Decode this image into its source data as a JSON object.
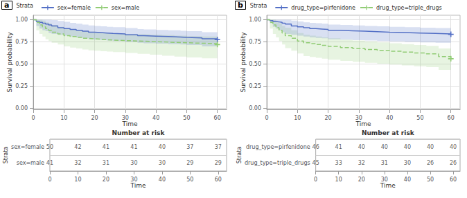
{
  "chart_data": [
    {
      "type": "step",
      "title": "a",
      "x_label": "Time",
      "y_label": "Survival probability",
      "legend_title": "Strata",
      "legend": "top",
      "grid": true,
      "xlim": [
        0,
        63
      ],
      "xticks": [
        0,
        10,
        20,
        30,
        40,
        50,
        60
      ],
      "ylim": [
        -0.01,
        1.05
      ],
      "yticks": [
        {
          "value": 0.0,
          "label": "0.00"
        },
        0.25,
        {
          "value": 0.5,
          "label": "0.50"
        },
        0.75,
        {
          "value": 1.0,
          "label": "1.00"
        }
      ],
      "series": [
        {
          "name": "sex=female",
          "line_style": "solid",
          "x": [
            0,
            1,
            2,
            3,
            4,
            5,
            6,
            8,
            10,
            12,
            14,
            16,
            18,
            20,
            22,
            24,
            26,
            30,
            34,
            36,
            40,
            44,
            48,
            50,
            55,
            60
          ],
          "values": [
            1.0,
            0.98,
            0.97,
            0.96,
            0.95,
            0.94,
            0.93,
            0.91,
            0.9,
            0.89,
            0.88,
            0.87,
            0.86,
            0.855,
            0.85,
            0.845,
            0.84,
            0.83,
            0.82,
            0.815,
            0.81,
            0.805,
            0.8,
            0.795,
            0.785,
            0.775
          ],
          "upper": [
            1.0,
            1.0,
            1.0,
            1.0,
            1.0,
            1.0,
            0.995,
            0.985,
            0.975,
            0.965,
            0.955,
            0.945,
            0.935,
            0.93,
            0.925,
            0.92,
            0.915,
            0.905,
            0.895,
            0.89,
            0.885,
            0.88,
            0.875,
            0.87,
            0.86,
            0.85
          ],
          "lower": [
            1.0,
            0.93,
            0.9,
            0.88,
            0.87,
            0.85,
            0.84,
            0.83,
            0.82,
            0.81,
            0.8,
            0.79,
            0.78,
            0.775,
            0.77,
            0.765,
            0.76,
            0.75,
            0.74,
            0.735,
            0.73,
            0.725,
            0.72,
            0.715,
            0.7,
            0.69
          ]
        },
        {
          "name": "sex=male",
          "line_style": "dashed",
          "x": [
            0,
            1,
            2,
            3,
            4,
            5,
            6,
            8,
            10,
            12,
            14,
            16,
            18,
            20,
            22,
            24,
            26,
            30,
            34,
            38,
            42,
            46,
            50,
            55,
            60
          ],
          "values": [
            1.0,
            0.97,
            0.94,
            0.92,
            0.9,
            0.88,
            0.86,
            0.84,
            0.82,
            0.81,
            0.8,
            0.79,
            0.785,
            0.78,
            0.775,
            0.77,
            0.765,
            0.76,
            0.755,
            0.75,
            0.745,
            0.74,
            0.735,
            0.73,
            0.72
          ],
          "upper": [
            1.0,
            1.0,
            1.0,
            0.99,
            0.97,
            0.96,
            0.94,
            0.92,
            0.9,
            0.89,
            0.88,
            0.87,
            0.865,
            0.86,
            0.855,
            0.85,
            0.845,
            0.84,
            0.835,
            0.83,
            0.825,
            0.82,
            0.815,
            0.81,
            0.8
          ],
          "lower": [
            1.0,
            0.88,
            0.84,
            0.81,
            0.78,
            0.76,
            0.74,
            0.72,
            0.7,
            0.685,
            0.675,
            0.665,
            0.655,
            0.65,
            0.645,
            0.64,
            0.635,
            0.625,
            0.615,
            0.605,
            0.595,
            0.585,
            0.575,
            0.565,
            0.55
          ]
        }
      ]
    },
    {
      "type": "table",
      "title": "Number at risk",
      "x_label": "Time",
      "y_label": "Strata",
      "xlim": [
        0,
        63
      ],
      "xticks": [
        0,
        10,
        20,
        30,
        40,
        50,
        60
      ],
      "x": [
        0,
        10,
        20,
        30,
        40,
        50,
        60
      ],
      "series": [
        {
          "name": "sex=female",
          "values": [
            50,
            42,
            41,
            41,
            40,
            37,
            37
          ]
        },
        {
          "name": "sex=male",
          "values": [
            41,
            32,
            31,
            30,
            30,
            29,
            29
          ]
        }
      ]
    },
    {
      "type": "step",
      "title": "b",
      "x_label": "Time",
      "y_label": "Survival probability",
      "legend_title": "Strata",
      "legend": "top",
      "grid": true,
      "xlim": [
        0,
        63
      ],
      "xticks": [
        0,
        10,
        20,
        30,
        40,
        50,
        60
      ],
      "ylim": [
        -0.01,
        1.05
      ],
      "yticks": [
        {
          "value": 0.0,
          "label": "0.00"
        },
        0.25,
        {
          "value": 0.5,
          "label": "0.50"
        },
        0.75,
        {
          "value": 1.0,
          "label": "1.00"
        }
      ],
      "series": [
        {
          "name": "drug_type=pirfenidone",
          "line_style": "solid",
          "x": [
            0,
            1,
            2,
            3,
            4,
            5,
            6,
            8,
            10,
            12,
            14,
            16,
            18,
            20,
            24,
            28,
            32,
            36,
            40,
            45,
            50,
            55,
            60
          ],
          "values": [
            1.0,
            0.99,
            0.98,
            0.975,
            0.97,
            0.96,
            0.95,
            0.93,
            0.92,
            0.91,
            0.9,
            0.895,
            0.89,
            0.88,
            0.875,
            0.87,
            0.865,
            0.86,
            0.855,
            0.85,
            0.845,
            0.84,
            0.835
          ],
          "upper": [
            1.0,
            1.0,
            1.0,
            1.0,
            1.0,
            1.0,
            1.0,
            0.99,
            0.98,
            0.97,
            0.965,
            0.96,
            0.955,
            0.945,
            0.94,
            0.935,
            0.93,
            0.925,
            0.92,
            0.915,
            0.91,
            0.905,
            0.9
          ],
          "lower": [
            1.0,
            0.96,
            0.92,
            0.9,
            0.88,
            0.86,
            0.84,
            0.83,
            0.82,
            0.81,
            0.8,
            0.795,
            0.79,
            0.78,
            0.775,
            0.77,
            0.765,
            0.76,
            0.755,
            0.75,
            0.745,
            0.74,
            0.735
          ]
        },
        {
          "name": "drug_type=triple_drugs",
          "line_style": "dashed",
          "x": [
            0,
            1,
            2,
            3,
            4,
            5,
            6,
            8,
            10,
            12,
            14,
            16,
            18,
            20,
            24,
            28,
            32,
            36,
            40,
            44,
            48,
            52,
            56,
            60
          ],
          "values": [
            1.0,
            0.97,
            0.94,
            0.91,
            0.88,
            0.85,
            0.82,
            0.79,
            0.76,
            0.74,
            0.73,
            0.72,
            0.71,
            0.7,
            0.685,
            0.675,
            0.665,
            0.655,
            0.645,
            0.635,
            0.625,
            0.615,
            0.585,
            0.56
          ],
          "upper": [
            1.0,
            1.0,
            1.0,
            0.98,
            0.96,
            0.93,
            0.91,
            0.88,
            0.85,
            0.83,
            0.82,
            0.81,
            0.8,
            0.79,
            0.775,
            0.765,
            0.755,
            0.745,
            0.735,
            0.725,
            0.715,
            0.705,
            0.675,
            0.65
          ],
          "lower": [
            1.0,
            0.9,
            0.84,
            0.8,
            0.76,
            0.72,
            0.68,
            0.65,
            0.62,
            0.59,
            0.58,
            0.57,
            0.56,
            0.55,
            0.535,
            0.525,
            0.515,
            0.505,
            0.495,
            0.485,
            0.475,
            0.465,
            0.435,
            0.41
          ]
        }
      ]
    },
    {
      "type": "table",
      "title": "Number at risk",
      "x_label": "Time",
      "y_label": "Strata",
      "xlim": [
        0,
        63
      ],
      "xticks": [
        0,
        10,
        20,
        30,
        40,
        50,
        60
      ],
      "x": [
        0,
        10,
        20,
        30,
        40,
        50,
        60
      ],
      "series": [
        {
          "name": "drug_type=pirfenidone",
          "values": [
            46,
            41,
            40,
            40,
            40,
            40,
            40
          ]
        },
        {
          "name": "drug_type=triple_drugs",
          "values": [
            45,
            33,
            32,
            31,
            30,
            26,
            26
          ]
        }
      ]
    }
  ]
}
